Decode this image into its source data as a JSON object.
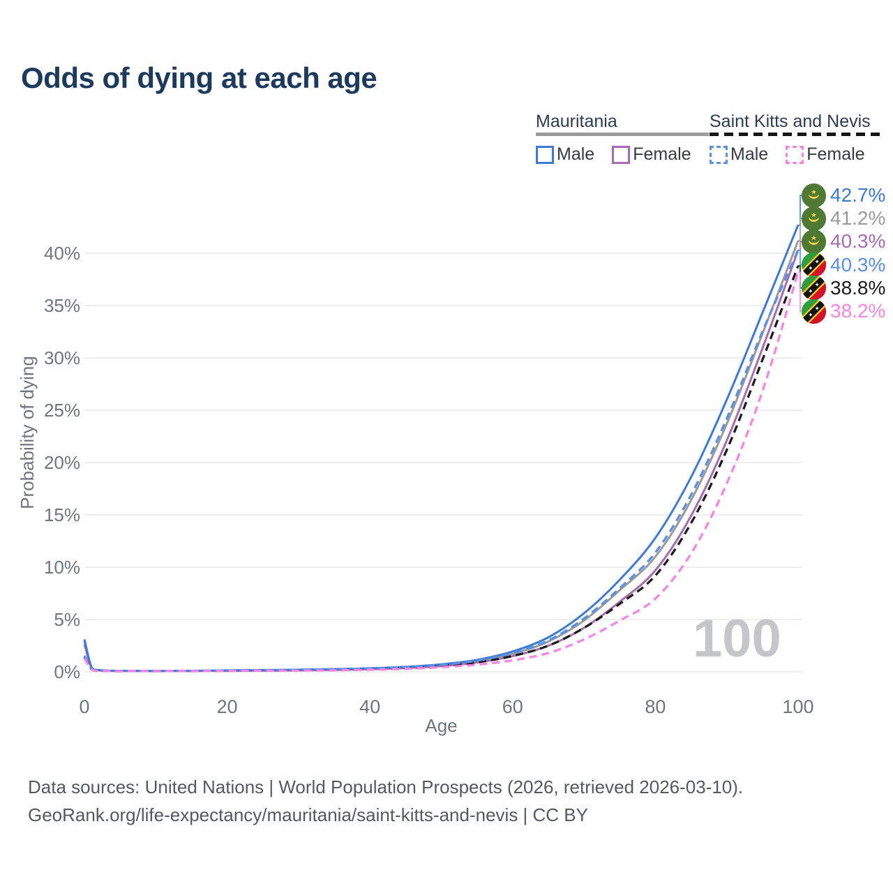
{
  "page": {
    "title": "Odds of dying at each age",
    "watermark": "100"
  },
  "legend": {
    "groups": [
      {
        "id": "mauritania",
        "label": "Mauritania",
        "line_style": "solid",
        "line_color": "#9a9a9a",
        "items": [
          {
            "id": "mauritania-male",
            "label": "Male",
            "color": "#3d7ad6",
            "dash": "solid"
          },
          {
            "id": "mauritania-female",
            "label": "Female",
            "color": "#a76bb2",
            "dash": "solid"
          }
        ]
      },
      {
        "id": "saint-kitts-and-nevis",
        "label": "Saint Kitts and Nevis",
        "line_style": "dashed",
        "line_color": "#141414",
        "items": [
          {
            "id": "saint-kitts-and-nevis-male",
            "label": "Male",
            "color": "#5c8fe8",
            "dash": "dashed"
          },
          {
            "id": "saint-kitts-and-nevis-female",
            "label": "Female",
            "color": "#fb83e4",
            "dash": "dashed"
          }
        ]
      }
    ]
  },
  "chart_data": {
    "type": "line",
    "title": "Odds of dying at each age",
    "xlabel": "Age",
    "ylabel": "Probability of dying",
    "xlim": [
      0,
      100
    ],
    "ylim": [
      0,
      43.5
    ],
    "grid": true,
    "legend_position": "top-right",
    "watermark_label": "100",
    "x_ticks": [
      0,
      20,
      40,
      60,
      80,
      100
    ],
    "y_ticks": [
      {
        "value": 0,
        "label": "0%"
      },
      {
        "value": 5,
        "label": "5%"
      },
      {
        "value": 10,
        "label": "10%"
      },
      {
        "value": 15,
        "label": "15%"
      },
      {
        "value": 20,
        "label": "20%"
      },
      {
        "value": 25,
        "label": "25%"
      },
      {
        "value": 30,
        "label": "30%"
      },
      {
        "value": 35,
        "label": "35%"
      },
      {
        "value": 40,
        "label": "40%"
      }
    ],
    "ages": [
      0,
      1,
      2,
      5,
      10,
      15,
      20,
      25,
      30,
      35,
      40,
      45,
      50,
      55,
      60,
      65,
      70,
      75,
      80,
      85,
      90,
      95,
      100
    ],
    "series": [
      {
        "name": "Mauritania — Male",
        "country": "mauritania",
        "sex": "male",
        "style": "solid",
        "color": "#3d7ad6",
        "end_value": 42.7,
        "end_label": "42.7%",
        "values": [
          3.1,
          0.45,
          0.18,
          0.1,
          0.08,
          0.1,
          0.14,
          0.17,
          0.21,
          0.26,
          0.34,
          0.48,
          0.72,
          1.15,
          1.95,
          3.3,
          5.6,
          8.8,
          12.8,
          18.6,
          26.0,
          34.3,
          42.7
        ]
      },
      {
        "name": "Mauritania — Both sexes",
        "country": "mauritania",
        "sex": "both",
        "style": "solid",
        "color": "#9a9a9a",
        "end_value": 41.2,
        "end_label": "41.2%",
        "values": [
          2.9,
          0.42,
          0.16,
          0.09,
          0.07,
          0.09,
          0.12,
          0.15,
          0.18,
          0.23,
          0.3,
          0.42,
          0.64,
          1.02,
          1.72,
          2.9,
          4.9,
          7.8,
          11.0,
          16.4,
          23.7,
          32.3,
          41.2
        ]
      },
      {
        "name": "Mauritania — Female",
        "country": "mauritania",
        "sex": "female",
        "style": "solid",
        "color": "#a76bb2",
        "end_value": 40.3,
        "end_label": "40.3%",
        "values": [
          2.65,
          0.38,
          0.15,
          0.08,
          0.065,
          0.075,
          0.09,
          0.11,
          0.14,
          0.18,
          0.25,
          0.36,
          0.56,
          0.9,
          1.5,
          2.5,
          4.2,
          6.7,
          9.7,
          14.9,
          22.1,
          30.9,
          40.3
        ]
      },
      {
        "name": "Saint Kitts and Nevis — Male",
        "country": "saint-kitts-and-nevis",
        "sex": "male",
        "style": "dashed",
        "color": "#5c8fe8",
        "end_value": 40.3,
        "end_label": "40.3%",
        "values": [
          1.55,
          0.28,
          0.12,
          0.07,
          0.065,
          0.09,
          0.13,
          0.16,
          0.2,
          0.25,
          0.31,
          0.44,
          0.67,
          1.07,
          1.8,
          3.0,
          5.1,
          8.0,
          11.4,
          16.9,
          24.2,
          32.5,
          40.3
        ]
      },
      {
        "name": "Saint Kitts and Nevis — Both sexes",
        "country": "saint-kitts-and-nevis",
        "sex": "both",
        "style": "dashed",
        "color": "#1d1d1d",
        "end_value": 38.8,
        "end_label": "38.8%",
        "values": [
          1.4,
          0.25,
          0.1,
          0.06,
          0.06,
          0.08,
          0.11,
          0.13,
          0.16,
          0.2,
          0.26,
          0.37,
          0.57,
          0.91,
          1.52,
          2.5,
          4.2,
          6.5,
          9.2,
          14.2,
          21.2,
          29.8,
          38.8
        ]
      },
      {
        "name": "Saint Kitts and Nevis — Female",
        "country": "saint-kitts-and-nevis",
        "sex": "female",
        "style": "dashed",
        "color": "#fb83e4",
        "end_value": 38.2,
        "end_label": "38.2%",
        "values": [
          1.3,
          0.22,
          0.09,
          0.055,
          0.05,
          0.06,
          0.08,
          0.1,
          0.12,
          0.15,
          0.2,
          0.28,
          0.44,
          0.68,
          1.1,
          1.8,
          3.1,
          4.9,
          7.0,
          11.3,
          18.0,
          26.8,
          38.2
        ]
      }
    ]
  },
  "footer": {
    "line1": "Data sources: United Nations | World Population Prospects (2026, retrieved 2026-03-10).",
    "line2": "GeoRank.org/life-expectancy/mauritania/saint-kitts-and-nevis | CC BY"
  }
}
